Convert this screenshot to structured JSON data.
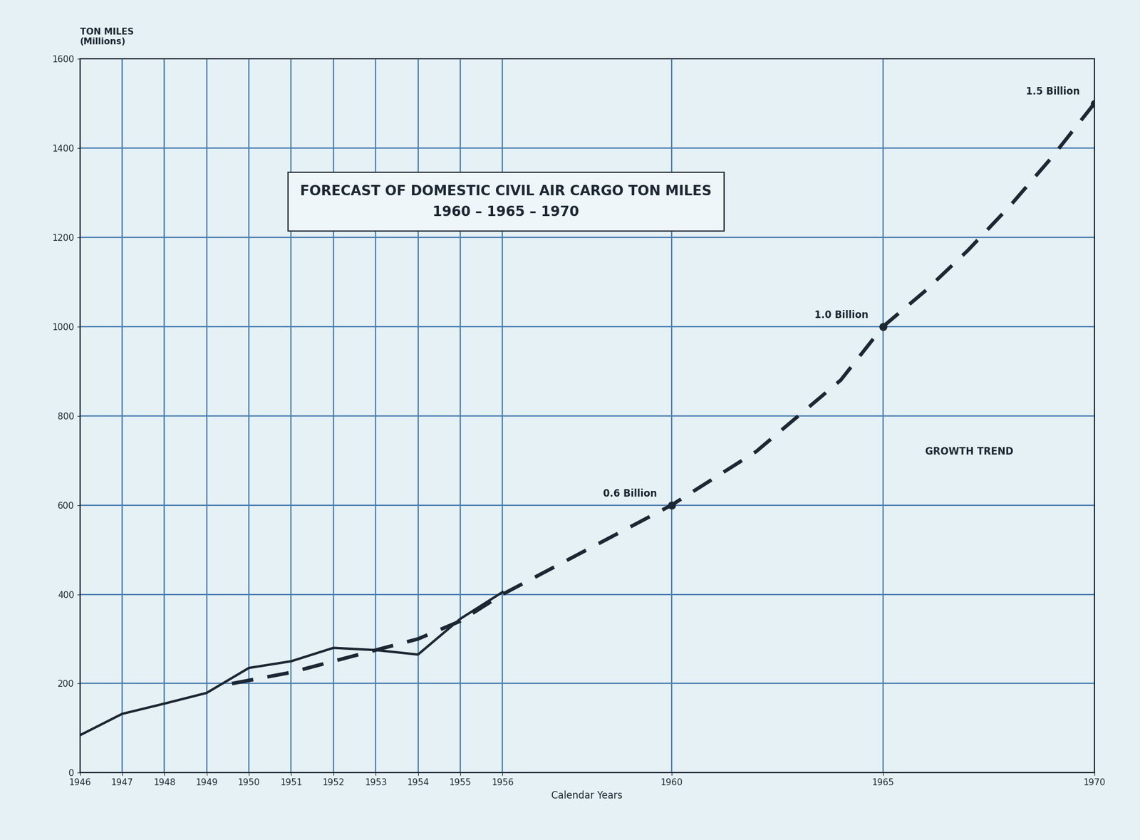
{
  "chart_data": {
    "type": "line",
    "title": "FORECAST OF DOMESTIC CIVIL AIR CARGO TON MILES\n1960 – 1965 – 1970",
    "x_label": "Calendar Years",
    "y_label": "TON MILES\n(Millions)",
    "series": [
      {
        "x": [
          1946,
          1947,
          1948,
          1949,
          1950,
          1951,
          1952,
          1953,
          1954,
          1955,
          1956
        ],
        "values": [
          84,
          132,
          155,
          179,
          235,
          250,
          280,
          275,
          265,
          345,
          405
        ],
        "color": "#1c2733",
        "line_style": "solid"
      },
      {
        "x": [
          1949.6,
          1951,
          1952,
          1953,
          1954,
          1955,
          1956,
          1958,
          1960,
          1962,
          1963,
          1964,
          1965,
          1966,
          1967,
          1968,
          1969,
          1970
        ],
        "values": [
          200,
          225,
          250,
          275,
          300,
          340,
          400,
          500,
          600,
          720,
          800,
          880,
          1000,
          1080,
          1170,
          1270,
          1380,
          1500
        ],
        "color": "#1c2733",
        "line_style": "dashed"
      }
    ],
    "annotations": [
      {
        "text": "0.6 Billion",
        "x": 1960,
        "y": 600
      },
      {
        "text": "1.0 Billion",
        "x": 1965,
        "y": 1000
      },
      {
        "text": "1.5 Billion",
        "x": 1970,
        "y": 1500
      },
      {
        "text": "GROWTH TREND",
        "x": 1966,
        "y": 720
      }
    ],
    "xlim": [
      1946,
      1970
    ],
    "xticks": [
      1946,
      1947,
      1948,
      1949,
      1950,
      1951,
      1952,
      1953,
      1954,
      1955,
      1956,
      1960,
      1965,
      1970
    ],
    "ylim": [
      0,
      1600
    ],
    "yticks": [
      0,
      200,
      400,
      600,
      800,
      1000,
      1200,
      1400,
      1600
    ],
    "grid": true
  }
}
